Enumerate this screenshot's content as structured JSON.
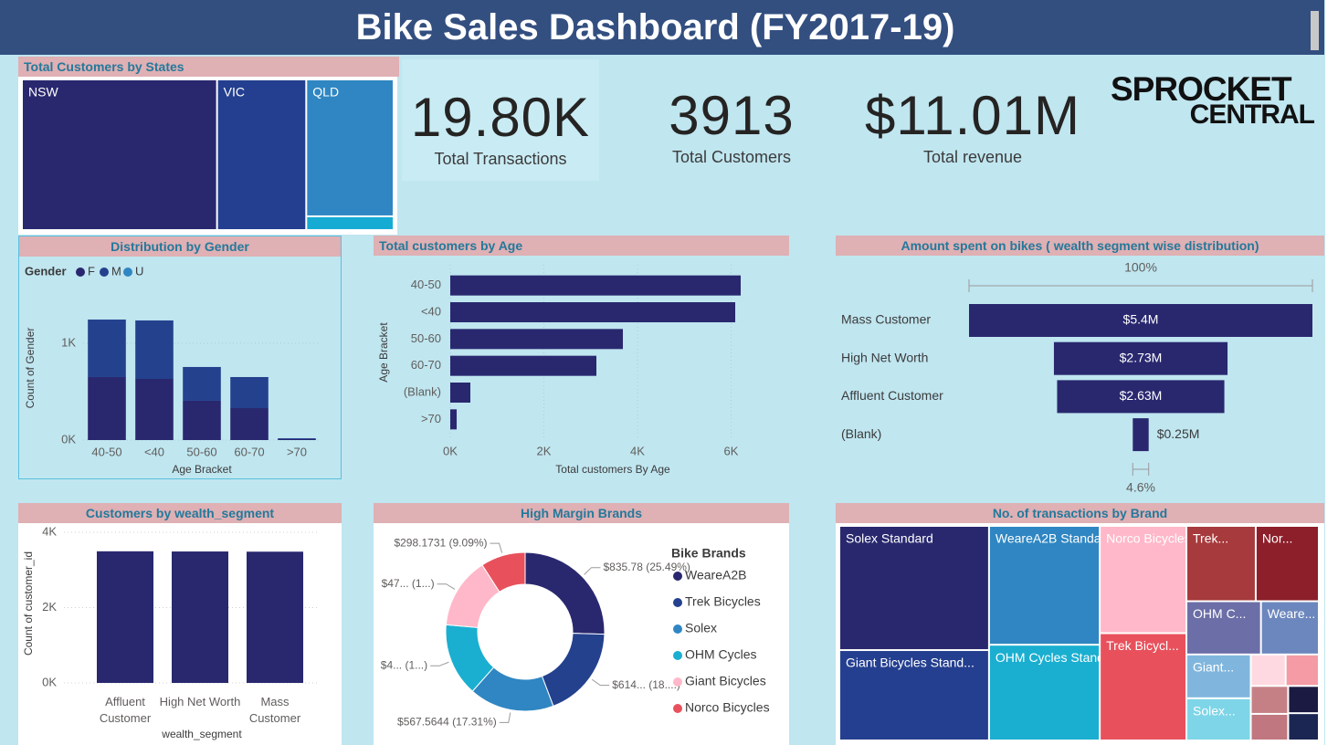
{
  "header": {
    "title": "Bike Sales Dashboard (FY2017-19)"
  },
  "kpis": [
    {
      "value": "19.80K",
      "label": "Total Transactions"
    },
    {
      "value": "3913",
      "label": "Total Customers"
    },
    {
      "value": "$11.01M",
      "label": "Total revenue"
    }
  ],
  "logo": {
    "line1": "SPROCKET",
    "line2": "CENTRAL"
  },
  "chart_data": [
    {
      "type": "treemap",
      "title": "Total Customers by States",
      "categories": [
        "NSW",
        "VIC",
        "QLD",
        null
      ],
      "values": [
        2054,
        939,
        836,
        84
      ],
      "colors": [
        "#29286f",
        "#243f8f",
        "#2f86c2",
        "#16abd3"
      ]
    },
    {
      "type": "stacked_bar",
      "title": "Distribution by Gender",
      "legend_title": "Gender",
      "categories": [
        "40-50",
        "<40",
        "50-60",
        "60-70",
        ">70"
      ],
      "series": [
        {
          "name": "F",
          "color": "#29286f",
          "values": [
            651,
            632,
            406,
            330,
            10
          ]
        },
        {
          "name": "M",
          "color": "#24418e",
          "values": [
            594,
            604,
            349,
            321,
            9
          ]
        },
        {
          "name": "U",
          "color": "#2f86c2",
          "values": [
            null,
            null,
            null,
            null,
            null
          ]
        }
      ],
      "ylim": [
        0,
        1330
      ],
      "yticks": [
        {
          "value": 0,
          "label": "0K"
        },
        {
          "value": 1000,
          "label": "1K"
        }
      ],
      "xlabel": "Age Bracket",
      "ylabel": "Count of Gender",
      "grid": true
    },
    {
      "type": "hbar",
      "title": "Total customers by Age",
      "categories": [
        "40-50",
        "<40",
        "50-60",
        "60-70",
        "(Blank)",
        ">70"
      ],
      "values": [
        6205,
        6088,
        3688,
        3122,
        429,
        137
      ],
      "color": "#29286f",
      "xlim": [
        0,
        6400
      ],
      "xticks": [
        {
          "value": 0,
          "label": "0K"
        },
        {
          "value": 2000,
          "label": "2K"
        },
        {
          "value": 4000,
          "label": "4K"
        },
        {
          "value": 6000,
          "label": "6K"
        }
      ],
      "xlabel": "Total customers By Age",
      "ylabel": "Age Bracket",
      "grid": true
    },
    {
      "type": "funnel",
      "title": "Amount spent on bikes ( wealth segment wise distribution)",
      "categories": [
        "Mass Customer",
        "High Net Worth",
        "Affluent Customer",
        "(Blank)"
      ],
      "values": [
        5400000,
        2730000,
        2630000,
        250000
      ],
      "value_labels": [
        "$5.4M",
        "$2.73M",
        "$2.63M",
        "$0.25M"
      ],
      "top_percent_label": "100%",
      "bottom_percent_label": "4.6%",
      "color": "#29286f"
    },
    {
      "type": "bar",
      "title": "Customers by wealth_segment",
      "categories": [
        "Affluent Customer",
        "High Net Worth",
        "Mass Customer"
      ],
      "values": [
        3495,
        3490,
        3485
      ],
      "color": "#29286f",
      "ylim": [
        0,
        4000
      ],
      "yticks": [
        {
          "value": 0,
          "label": "0K"
        },
        {
          "value": 2000,
          "label": "2K"
        },
        {
          "value": 4000,
          "label": "4K"
        }
      ],
      "xlabel": "wealth_segment",
      "ylabel": "Count of customer_id",
      "grid": true
    },
    {
      "type": "donut",
      "title": "High Margin Brands",
      "legend_title": "Bike Brands",
      "categories": [
        "WeareA2B",
        "Trek Bicycles",
        "Solex",
        "OHM Cycles",
        "Giant Bicycles",
        "Norco Bicycles"
      ],
      "values": [
        835.78,
        614.5,
        567.5644,
        487.8,
        475.0,
        298.1731
      ],
      "value_labels": [
        "$835.78 (25.49%)",
        "$614... (18....)",
        "$567.5644 (17.31%)",
        "$4... (1...)",
        "$47... (1...)",
        "$298.1731 (9.09%)"
      ],
      "colors": [
        "#29286f",
        "#24418e",
        "#2f86c2",
        "#1aafd0",
        "#ffb8c9",
        "#e8515c"
      ]
    },
    {
      "type": "treemap",
      "title": "No. of transactions by Brand",
      "categories": [
        "Solex Standard",
        "Giant Bicycles Stand...",
        "WeareA2B Standard",
        "OHM Cycles Standard",
        "Norco Bicycles Stand...",
        "Trek Bicycl...",
        "Trek...",
        "Nor...",
        "OHM C...",
        "Weare...",
        "Giant...",
        "Solex...",
        null,
        null,
        null,
        null,
        null,
        null
      ],
      "values": [
        3560,
        2590,
        2520,
        2030,
        1780,
        1780,
        1000,
        910,
        760,
        590,
        540,
        520,
        210,
        200,
        200,
        190,
        160,
        160
      ],
      "colors": [
        "#29286f",
        "#243f8f",
        "#2f86c2",
        "#1aafd0",
        "#ffb8c9",
        "#e8515c",
        "#a63a3c",
        "#8c1f2a",
        "#6b6ea7",
        "#6c87bd",
        "#80b6dd",
        "#7ed5e7",
        "#ffd9e1",
        "#f49ba5",
        "#c58086",
        "#c0777f",
        "#1b1a42",
        "#1b2652"
      ]
    }
  ]
}
